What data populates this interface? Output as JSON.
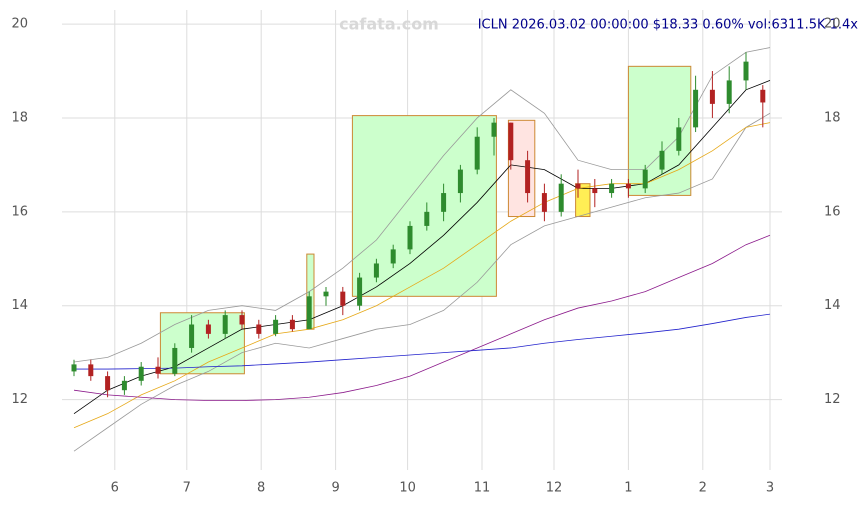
{
  "chart_data": {
    "type": "candlestick",
    "title": "ICLN 2026.03.02 00:00:00 $18.33 0.60% vol:6311.5K 1.4x",
    "watermark": "cafata.com",
    "xlim": [
      -22,
      278
    ],
    "ylim": [
      10.5,
      20.3
    ],
    "xticks": [
      {
        "value": 0,
        "label": "6"
      },
      {
        "value": 30,
        "label": "7"
      },
      {
        "value": 61,
        "label": "8"
      },
      {
        "value": 92,
        "label": "9"
      },
      {
        "value": 122,
        "label": "10"
      },
      {
        "value": 153,
        "label": "11"
      },
      {
        "value": 183,
        "label": "12"
      },
      {
        "value": 214,
        "label": "1"
      },
      {
        "value": 245,
        "label": "2"
      },
      {
        "value": 273,
        "label": "3"
      }
    ],
    "yticks": [
      12,
      14,
      16,
      18,
      20
    ],
    "grid": true,
    "up_color": "#2e8b2e",
    "down_color": "#b22222",
    "candles": {
      "x": [
        -17,
        -10,
        -3,
        4,
        11,
        18,
        25,
        32,
        39,
        46,
        53,
        60,
        67,
        74,
        81,
        88,
        95,
        102,
        109,
        116,
        123,
        130,
        137,
        144,
        151,
        158,
        165,
        172,
        179,
        186,
        193,
        200,
        207,
        214,
        221,
        228,
        235,
        242,
        249,
        256,
        263,
        270
      ],
      "open": [
        12.6,
        12.75,
        12.5,
        12.2,
        12.4,
        12.7,
        12.55,
        13.1,
        13.6,
        13.4,
        13.8,
        13.6,
        13.4,
        13.7,
        13.5,
        14.2,
        14.3,
        14.0,
        14.6,
        14.9,
        15.2,
        15.7,
        16.0,
        16.4,
        16.9,
        17.6,
        17.9,
        17.1,
        16.4,
        16.0,
        16.6,
        16.5,
        16.4,
        16.6,
        16.5,
        16.9,
        17.3,
        17.8,
        18.6,
        18.3,
        18.8,
        18.6
      ],
      "high": [
        12.85,
        12.85,
        12.6,
        12.5,
        12.8,
        12.9,
        13.2,
        13.8,
        13.7,
        13.9,
        13.9,
        13.7,
        13.8,
        13.8,
        14.3,
        14.4,
        14.4,
        14.7,
        15.0,
        15.3,
        15.8,
        16.2,
        16.6,
        17.0,
        17.8,
        18.0,
        17.9,
        17.3,
        16.6,
        16.8,
        16.9,
        16.7,
        16.7,
        16.7,
        17.0,
        17.5,
        18.0,
        18.9,
        19.0,
        19.1,
        19.4,
        18.7
      ],
      "low": [
        12.5,
        12.4,
        12.05,
        12.1,
        12.3,
        12.45,
        12.5,
        13.0,
        13.3,
        13.3,
        13.5,
        13.3,
        13.35,
        13.45,
        13.5,
        14.0,
        13.8,
        13.9,
        14.5,
        14.8,
        15.1,
        15.6,
        15.8,
        16.2,
        16.8,
        17.2,
        16.9,
        16.2,
        15.8,
        15.9,
        16.3,
        16.1,
        16.3,
        16.3,
        16.4,
        16.8,
        17.2,
        17.7,
        18.0,
        18.1,
        18.6,
        17.8
      ],
      "close": [
        12.75,
        12.5,
        12.2,
        12.4,
        12.7,
        12.55,
        13.1,
        13.6,
        13.4,
        13.8,
        13.6,
        13.4,
        13.7,
        13.5,
        14.2,
        14.3,
        14.0,
        14.6,
        14.9,
        15.2,
        15.7,
        16.0,
        16.4,
        16.9,
        17.6,
        17.9,
        17.1,
        16.4,
        16.0,
        16.6,
        16.5,
        16.4,
        16.6,
        16.5,
        16.9,
        17.3,
        17.8,
        18.6,
        18.3,
        18.8,
        19.2,
        18.33
      ]
    },
    "line_x": [
      -17,
      -3,
      11,
      25,
      39,
      53,
      67,
      81,
      95,
      109,
      123,
      137,
      151,
      165,
      179,
      193,
      207,
      221,
      235,
      249,
      263,
      273
    ],
    "series": [
      {
        "color": "#999999",
        "values": [
          12.8,
          12.9,
          13.2,
          13.6,
          13.9,
          14.0,
          13.9,
          14.3,
          14.8,
          15.4,
          16.3,
          17.2,
          18.0,
          18.6,
          18.1,
          17.1,
          16.9,
          16.9,
          17.6,
          18.9,
          19.4,
          19.5
        ]
      },
      {
        "color": "#999999",
        "values": [
          10.9,
          11.4,
          11.9,
          12.3,
          12.6,
          13.0,
          13.2,
          13.1,
          13.3,
          13.5,
          13.6,
          13.9,
          14.5,
          15.3,
          15.7,
          15.9,
          16.1,
          16.3,
          16.4,
          16.7,
          17.8,
          18.1
        ]
      },
      {
        "color": "#000000",
        "values": [
          11.7,
          12.2,
          12.5,
          12.7,
          13.1,
          13.5,
          13.6,
          13.7,
          14.0,
          14.4,
          14.9,
          15.5,
          16.2,
          17.0,
          16.9,
          16.5,
          16.5,
          16.6,
          17.0,
          17.8,
          18.6,
          18.8
        ]
      },
      {
        "color": "#e6a817",
        "values": [
          11.4,
          11.7,
          12.1,
          12.4,
          12.8,
          13.1,
          13.4,
          13.5,
          13.7,
          14.0,
          14.4,
          14.8,
          15.3,
          15.8,
          16.2,
          16.5,
          16.6,
          16.6,
          16.9,
          17.3,
          17.8,
          17.9
        ]
      },
      {
        "color": "#8b1a8b",
        "values": [
          12.2,
          12.1,
          12.05,
          12.0,
          11.98,
          11.98,
          12.0,
          12.05,
          12.15,
          12.3,
          12.5,
          12.8,
          13.1,
          13.4,
          13.7,
          13.95,
          14.1,
          14.3,
          14.6,
          14.9,
          15.3,
          15.5
        ]
      },
      {
        "color": "#2222cc",
        "values": [
          12.65,
          12.65,
          12.66,
          12.67,
          12.7,
          12.72,
          12.76,
          12.8,
          12.85,
          12.9,
          12.95,
          13.0,
          13.05,
          13.1,
          13.2,
          13.28,
          13.35,
          13.42,
          13.5,
          13.62,
          13.75,
          13.82
        ]
      }
    ],
    "boxes": [
      {
        "x0": 19,
        "x1": 54,
        "y0": 12.55,
        "y1": 13.85,
        "color": "#ccffcc"
      },
      {
        "x0": 80,
        "x1": 83,
        "y0": 13.5,
        "y1": 15.1,
        "color": "#ccffcc"
      },
      {
        "x0": 99,
        "x1": 159,
        "y0": 14.2,
        "y1": 18.05,
        "color": "#ccffcc"
      },
      {
        "x0": 164,
        "x1": 175,
        "y0": 15.9,
        "y1": 17.95,
        "color": "#ffe4e1"
      },
      {
        "x0": 192,
        "x1": 198,
        "y0": 15.9,
        "y1": 16.6,
        "color": "#ffee55"
      },
      {
        "x0": 214,
        "x1": 240,
        "y0": 16.35,
        "y1": 19.1,
        "color": "#ccffcc"
      }
    ]
  }
}
